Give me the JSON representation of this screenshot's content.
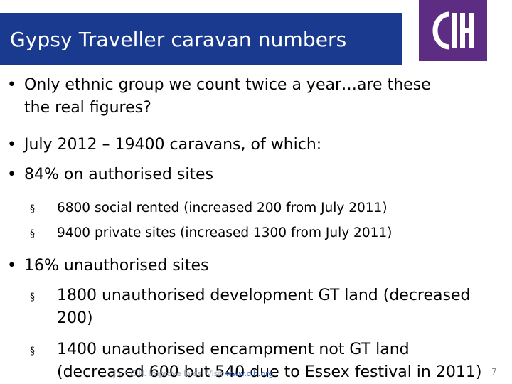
{
  "slide": {
    "title": "Gypsy Traveller caravan numbers",
    "bullets": [
      {
        "line1": "Only ethnic group we count twice a year…are these",
        "line2": "the real figures?"
      },
      {
        "line1": "July 2012 – 19400 caravans, of which:"
      },
      {
        "line1": "84% on authorised sites"
      }
    ],
    "authorised_subs": [
      "6800 social rented (increased 200 from July 2011)",
      "9400 private sites (increased 1300 from July 2011)"
    ],
    "bullet_unauth": "16% unauthorised sites",
    "unauth_subs": [
      {
        "line1": "1800 unauthorised development GT land (decreased",
        "line2": "200)"
      },
      {
        "line1": "1400 unauthorised encampment not GT land",
        "line2": "(decreased 600 but 540 due to Essex festival in 2011)"
      }
    ],
    "footer_text": "Join CIH. Improve lives. Visit",
    "footer_link": "www.cih.org",
    "page_number": "7",
    "bullet_symbol": "•",
    "sub_symbol": "§"
  },
  "colors": {
    "title_bar": "#1a3a8f",
    "logo_bg": "#5c2d82"
  }
}
